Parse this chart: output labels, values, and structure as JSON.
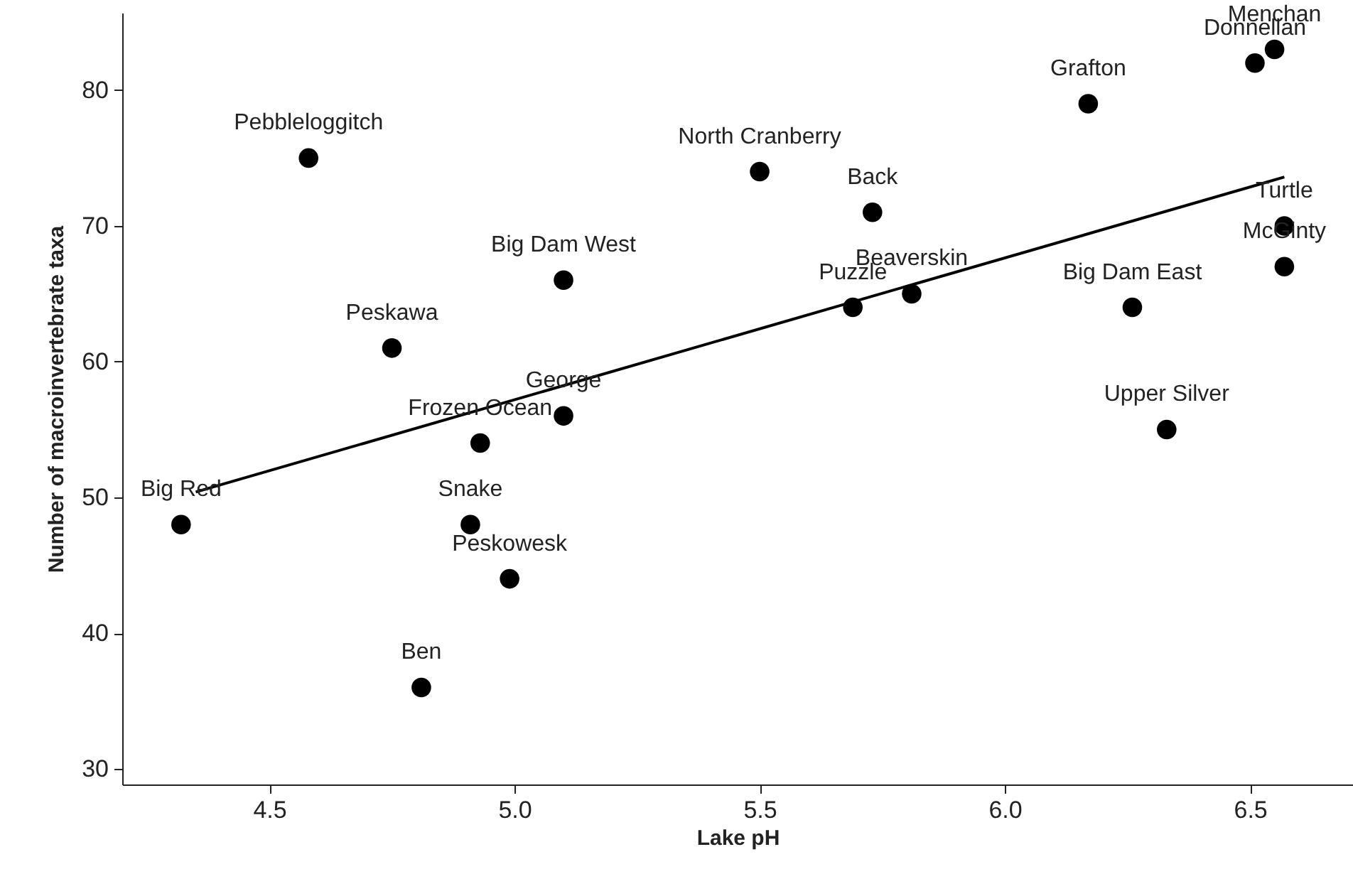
{
  "chart_data": {
    "type": "scatter",
    "xlabel": "Lake pH",
    "ylabel": "Number of macroinvertebrate taxa",
    "xlim": [
      4.2,
      6.71
    ],
    "ylim": [
      28.85,
      85.7
    ],
    "xticks": [
      {
        "value": 4.5,
        "label": "4.5"
      },
      {
        "value": 5,
        "label": "5.0"
      },
      {
        "value": 5.5,
        "label": "5.5"
      },
      {
        "value": 6,
        "label": "6.0"
      },
      {
        "value": 6.5,
        "label": "6.5"
      }
    ],
    "yticks": [
      30,
      40,
      50,
      60,
      70,
      80
    ],
    "grid": false,
    "series": [
      {
        "marker": "circle",
        "color": "#000000",
        "x": [
          4.32,
          4.58,
          4.75,
          4.81,
          4.91,
          4.93,
          4.99,
          5.1,
          5.1,
          5.5,
          5.73,
          5.69,
          5.81,
          6.17,
          6.26,
          6.33,
          6.51,
          6.55,
          6.57,
          6.57
        ],
        "values": [
          48,
          75,
          61,
          36,
          48,
          54,
          44,
          56,
          66,
          74,
          71,
          64,
          65,
          79,
          64,
          55,
          82,
          83,
          70,
          67
        ]
      },
      {
        "type": "line",
        "color": "#000000",
        "x": [
          4.35,
          6.57
        ],
        "values": [
          50.4,
          73.6
        ]
      }
    ],
    "annotations": [
      {
        "text": "Big Red",
        "x": 4.32,
        "y": 48
      },
      {
        "text": "Pebbleloggitch",
        "x": 4.58,
        "y": 75
      },
      {
        "text": "Peskawa",
        "x": 4.75,
        "y": 61
      },
      {
        "text": "Ben",
        "x": 4.81,
        "y": 36
      },
      {
        "text": "Snake",
        "x": 4.91,
        "y": 48
      },
      {
        "text": "Frozen Ocean",
        "x": 4.93,
        "y": 54
      },
      {
        "text": "Peskowesk",
        "x": 4.99,
        "y": 44
      },
      {
        "text": "George",
        "x": 5.1,
        "y": 56
      },
      {
        "text": "Big Dam West",
        "x": 5.1,
        "y": 66
      },
      {
        "text": "North Cranberry",
        "x": 5.5,
        "y": 74
      },
      {
        "text": "Back",
        "x": 5.73,
        "y": 71
      },
      {
        "text": "Puzzle",
        "x": 5.69,
        "y": 64
      },
      {
        "text": "Beaverskin",
        "x": 5.81,
        "y": 65
      },
      {
        "text": "Grafton",
        "x": 6.17,
        "y": 79
      },
      {
        "text": "Big Dam East",
        "x": 6.26,
        "y": 64
      },
      {
        "text": "Upper Silver",
        "x": 6.33,
        "y": 55
      },
      {
        "text": "Donnellan",
        "x": 6.51,
        "y": 82
      },
      {
        "text": "Menchan",
        "x": 6.55,
        "y": 83
      },
      {
        "text": "Turtle",
        "x": 6.57,
        "y": 70
      },
      {
        "text": "McGinty",
        "x": 6.57,
        "y": 67
      }
    ]
  }
}
